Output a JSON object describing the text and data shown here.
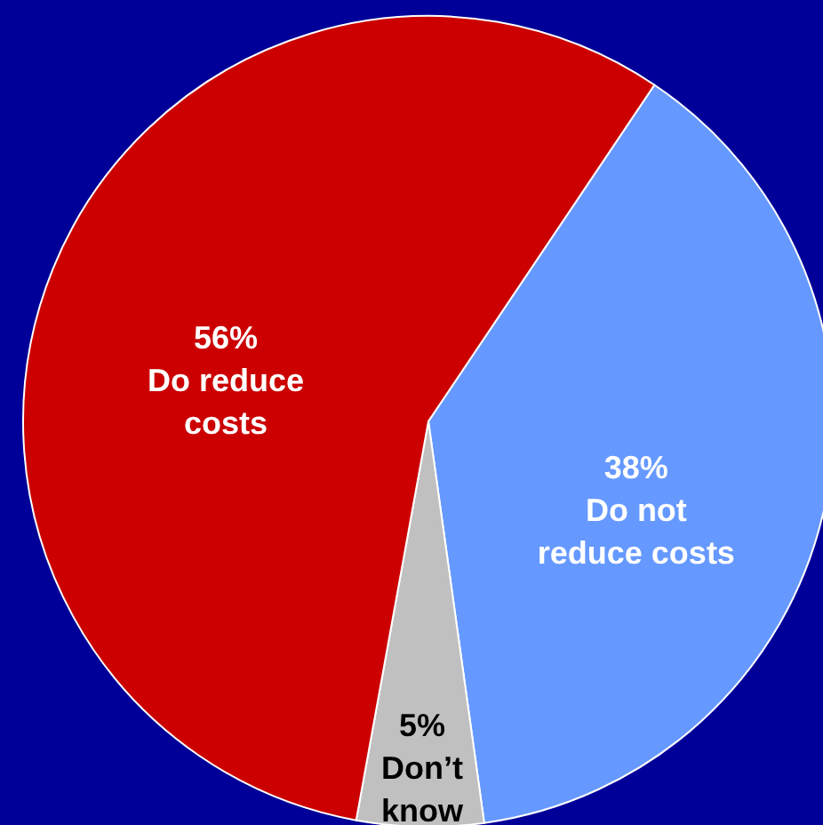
{
  "chart_data": {
    "type": "pie",
    "categories": [
      "Do not reduce costs",
      "Don’t know",
      "Do reduce costs"
    ],
    "values": [
      38,
      5,
      56
    ],
    "colors": [
      "#6699ff",
      "#c0c0c0",
      "#cc0000"
    ],
    "value_labels": [
      "38%",
      "5%",
      "56%"
    ],
    "data_labels": true,
    "legend": false
  }
}
